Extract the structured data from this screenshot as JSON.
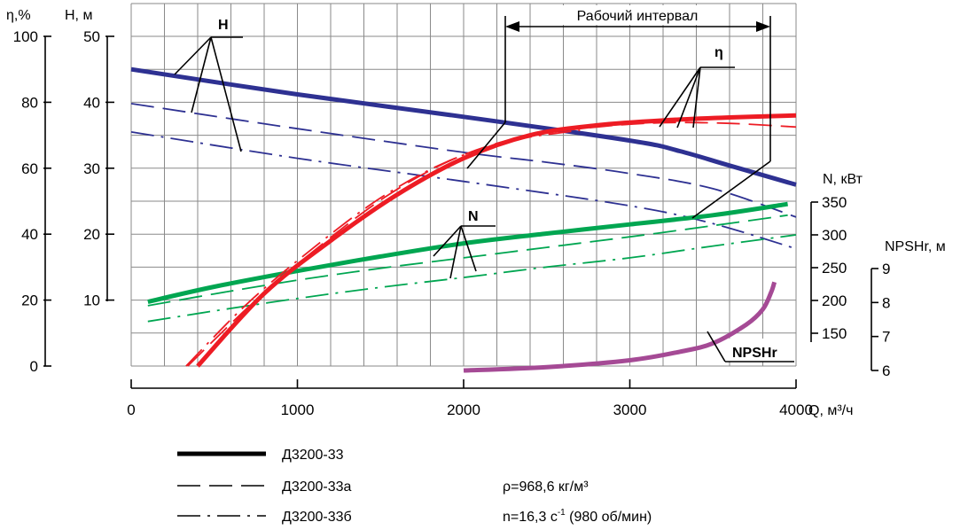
{
  "chart_data": {
    "type": "line",
    "title": "",
    "x_axis": {
      "label": "Q, м³/ч",
      "range": [
        0,
        4000
      ],
      "ticks": [
        0,
        1000,
        2000,
        3000,
        4000
      ],
      "tick_labels": [
        "0",
        "1000",
        "2000",
        "3000",
        "4000"
      ],
      "grid_step": 200
    },
    "axes": {
      "eta": {
        "label": "η,%",
        "range": [
          0,
          100
        ],
        "ticks": [
          0,
          20,
          40,
          60,
          80,
          100
        ],
        "tick_labels": [
          "0",
          "20",
          "40",
          "60",
          "80",
          "100"
        ]
      },
      "H": {
        "label": "H, м",
        "range": [
          0,
          50
        ],
        "ticks": [
          10,
          20,
          30,
          40,
          50
        ],
        "tick_labels": [
          "10",
          "20",
          "30",
          "40",
          "50"
        ]
      },
      "N": {
        "label": "N, кВт",
        "range": [
          150,
          350
        ],
        "ticks": [
          150,
          200,
          250,
          300,
          350
        ],
        "tick_labels": [
          "150",
          "200",
          "250",
          "300",
          "350"
        ]
      },
      "NPSHr": {
        "label": "NPSHr, м",
        "range": [
          6,
          9
        ],
        "ticks": [
          6,
          7,
          8,
          9
        ],
        "tick_labels": [
          "6",
          "7",
          "8",
          "9"
        ]
      }
    },
    "grid": true,
    "series": [
      {
        "name": "H",
        "model": "Д3200-33",
        "axis": "H",
        "color": "#2e3192",
        "style": "solid",
        "points": [
          [
            0,
            45.0
          ],
          [
            1000,
            41.2
          ],
          [
            2000,
            37.8
          ],
          [
            3000,
            34.2
          ],
          [
            3300,
            32.6
          ],
          [
            3600,
            30.4
          ],
          [
            4000,
            27.5
          ]
        ]
      },
      {
        "name": "H",
        "model": "Д3200-33а",
        "axis": "H",
        "color": "#2e3192",
        "style": "dash",
        "points": [
          [
            0,
            39.8
          ],
          [
            1000,
            36.0
          ],
          [
            2000,
            32.4
          ],
          [
            2500,
            30.9
          ],
          [
            3000,
            29.2
          ],
          [
            3500,
            26.9
          ],
          [
            4000,
            22.6
          ]
        ]
      },
      {
        "name": "H",
        "model": "Д3200-33б",
        "axis": "H",
        "color": "#2e3192",
        "style": "dashdot",
        "points": [
          [
            0,
            35.5
          ],
          [
            1000,
            31.5
          ],
          [
            2000,
            28.0
          ],
          [
            3000,
            24.3
          ],
          [
            3500,
            21.6
          ],
          [
            4000,
            17.8
          ]
        ]
      },
      {
        "name": "η",
        "model": "Д3200-33",
        "axis": "eta",
        "color": "#ed1c24",
        "style": "solid",
        "points": [
          [
            400,
            0
          ],
          [
            800,
            22
          ],
          [
            1200,
            38
          ],
          [
            1600,
            52
          ],
          [
            2000,
            63
          ],
          [
            2400,
            70
          ],
          [
            2800,
            73
          ],
          [
            3200,
            74.5
          ],
          [
            3600,
            75.4
          ],
          [
            4000,
            76
          ]
        ]
      },
      {
        "name": "η",
        "model": "Д3200-33а",
        "axis": "eta",
        "color": "#ed1c24",
        "style": "dash",
        "points": [
          [
            340,
            0
          ],
          [
            750,
            20
          ],
          [
            1150,
            37
          ],
          [
            1550,
            52
          ],
          [
            1950,
            63
          ],
          [
            2350,
            69.5
          ],
          [
            2800,
            72.5
          ],
          [
            3200,
            73.8
          ],
          [
            3600,
            73.6
          ],
          [
            4000,
            72.5
          ]
        ]
      },
      {
        "name": "η",
        "model": "Д3200-33б",
        "axis": "eta",
        "color": "#ed1c24",
        "style": "dashdot",
        "points": [
          [
            330,
            0
          ],
          [
            700,
            19
          ],
          [
            1100,
            36
          ],
          [
            1500,
            51
          ],
          [
            1900,
            62
          ],
          [
            2300,
            68.5
          ],
          [
            2700,
            71.5
          ]
        ]
      },
      {
        "name": "N",
        "model": "Д3200-33",
        "axis": "N",
        "color": "#00a651",
        "style": "solid",
        "points": [
          [
            100,
            198
          ],
          [
            500,
            221
          ],
          [
            1000,
            245
          ],
          [
            1500,
            267
          ],
          [
            2000,
            287
          ],
          [
            2500,
            302
          ],
          [
            3000,
            316
          ],
          [
            3500,
            330
          ],
          [
            3950,
            347
          ]
        ]
      },
      {
        "name": "N",
        "model": "Д3200-33а",
        "axis": "N",
        "color": "#00a651",
        "style": "dash",
        "points": [
          [
            100,
            192
          ],
          [
            500,
            210
          ],
          [
            1000,
            231
          ],
          [
            1500,
            249
          ],
          [
            2000,
            265
          ],
          [
            2500,
            281
          ],
          [
            3000,
            297
          ],
          [
            3500,
            314
          ],
          [
            3950,
            330
          ]
        ]
      },
      {
        "name": "N",
        "model": "Д3200-33б",
        "axis": "N",
        "color": "#00a651",
        "style": "dashdot",
        "points": [
          [
            100,
            168
          ],
          [
            500,
            184
          ],
          [
            1000,
            203
          ],
          [
            1500,
            220
          ],
          [
            2000,
            235
          ],
          [
            2500,
            251
          ],
          [
            3000,
            265
          ],
          [
            3500,
            283
          ],
          [
            4000,
            300
          ]
        ]
      },
      {
        "name": "NPSHr",
        "model": "Д3200-33",
        "axis": "NPSHr",
        "color": "#a54a95",
        "style": "solid",
        "points": [
          [
            2000,
            6.0
          ],
          [
            2500,
            6.1
          ],
          [
            3000,
            6.3
          ],
          [
            3300,
            6.55
          ],
          [
            3500,
            6.8
          ],
          [
            3700,
            7.35
          ],
          [
            3800,
            7.8
          ],
          [
            3850,
            8.3
          ],
          [
            3870,
            8.6
          ]
        ]
      }
    ],
    "annotations": {
      "curve_labels": [
        "H",
        "η",
        "N",
        "NPSHr"
      ],
      "working_interval": {
        "label": "Рабочий интервал",
        "from": 2250,
        "to": 3850
      }
    },
    "legend": {
      "position": "bottom-left",
      "items": [
        {
          "label": "Д3200-33",
          "style": "solid"
        },
        {
          "label": "Д3200-33а",
          "style": "dash"
        },
        {
          "label": "Д3200-33б",
          "style": "dashdot"
        }
      ]
    },
    "notes": {
      "density": "ρ=968,6 кг/м³",
      "speed_main": "n=16,3 с",
      "speed_sup": "-1",
      "speed_rest": " (980 об/мин)"
    }
  }
}
